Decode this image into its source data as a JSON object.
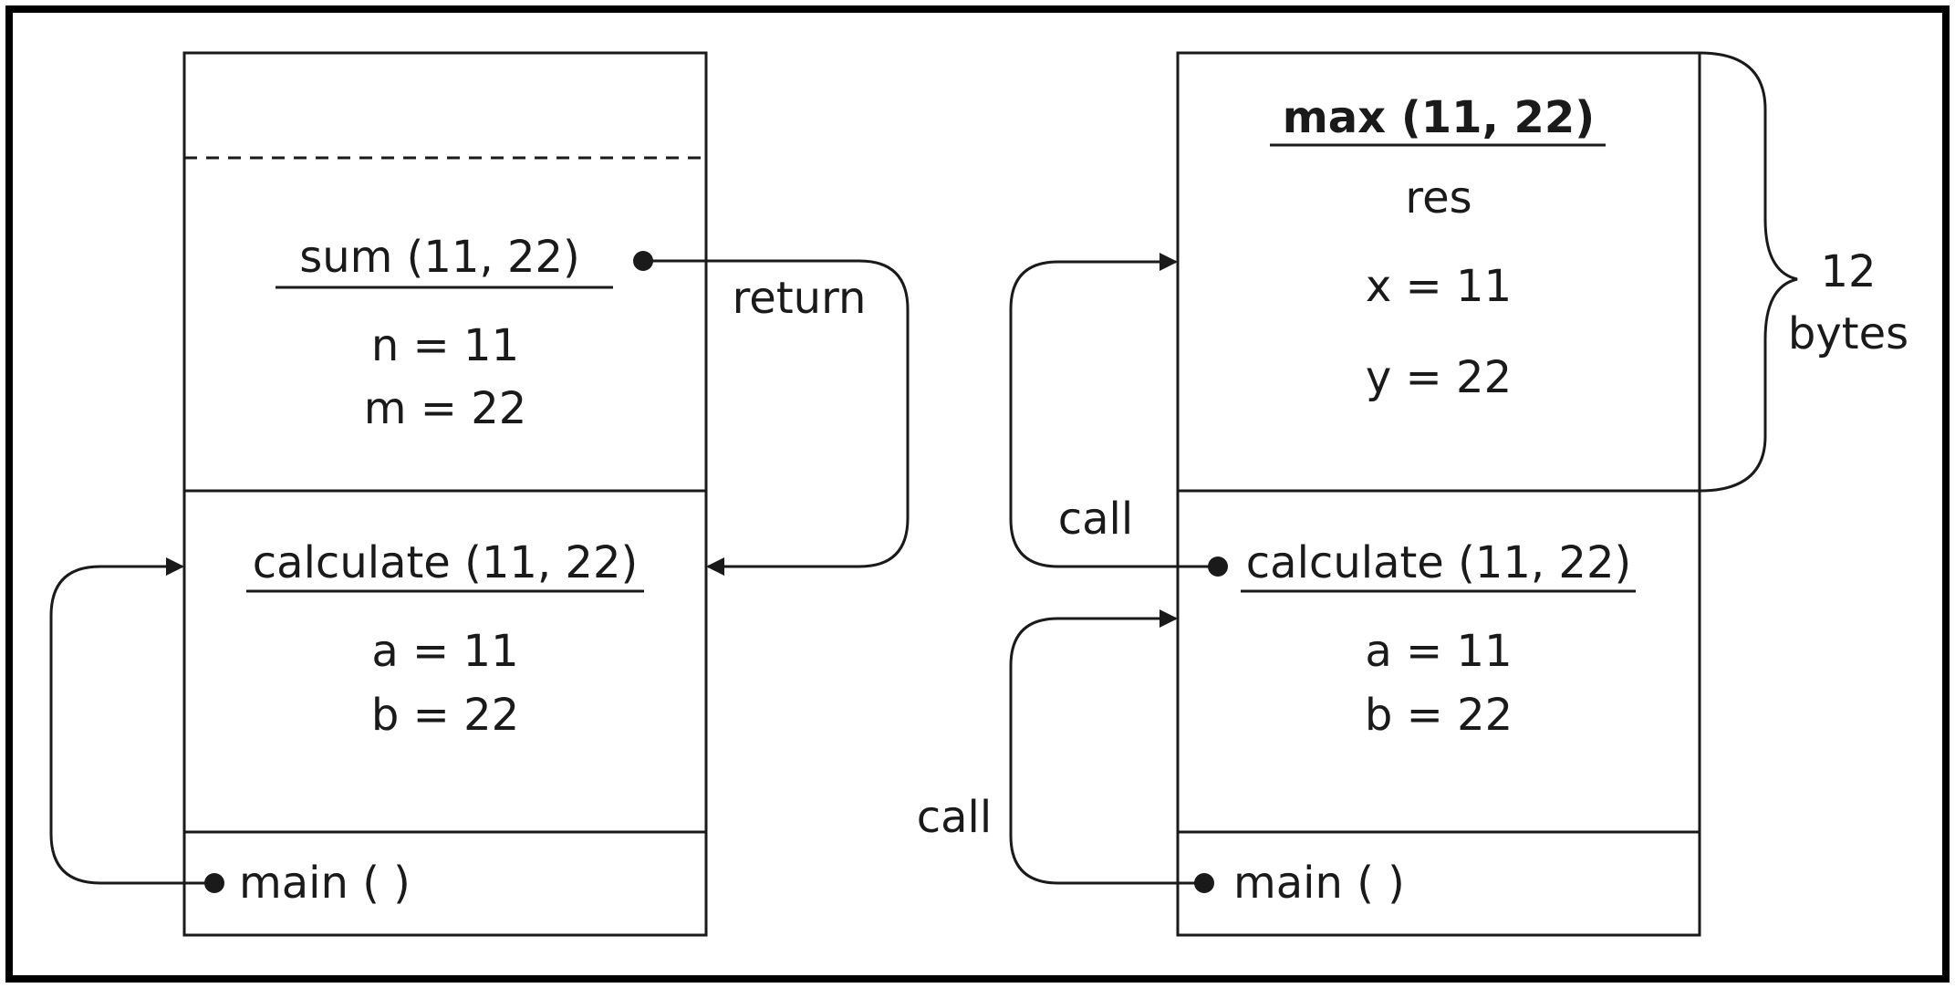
{
  "left_stack": {
    "sum_frame": {
      "title": "sum (11, 22)",
      "vars": [
        "n = 11",
        "m = 22"
      ]
    },
    "calculate_frame": {
      "title": "calculate (11, 22)",
      "vars": [
        "a = 11",
        "b = 22"
      ]
    },
    "main_frame": {
      "title": "main ( )"
    },
    "return_label": "return"
  },
  "right_stack": {
    "max_frame": {
      "title": "max (11, 22)",
      "vars": [
        "res",
        "x = 11",
        "y = 22"
      ]
    },
    "calculate_frame": {
      "title": "calculate (11, 22)",
      "vars": [
        "a = 11",
        "b = 22"
      ]
    },
    "main_frame": {
      "title": "main ( )"
    },
    "call_label_upper": "call",
    "call_label_lower": "call",
    "size_label": [
      "12",
      "bytes"
    ]
  }
}
